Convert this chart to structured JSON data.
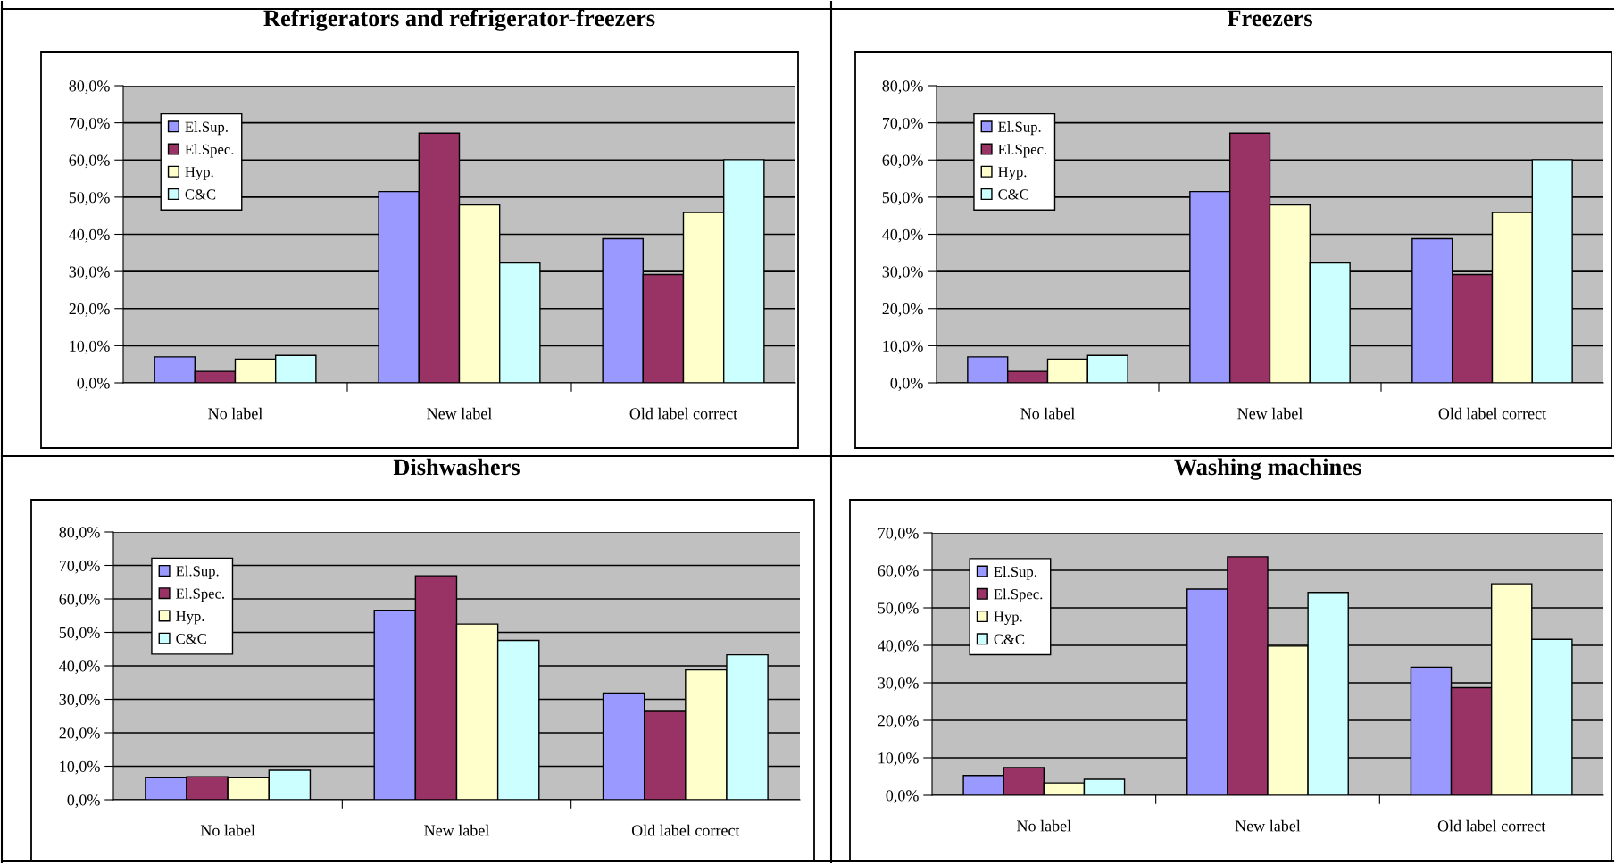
{
  "chart_data": [
    {
      "type": "bar",
      "title": "Refrigerators and refrigerator-freezers",
      "categories": [
        "No label",
        "New label",
        "Old label correct"
      ],
      "series": [
        {
          "name": "El.Sup.",
          "color": "#9999ff",
          "values": [
            7.0,
            51.5,
            38.8
          ]
        },
        {
          "name": "El.Spec.",
          "color": "#993366",
          "values": [
            3.1,
            67.2,
            29.2
          ]
        },
        {
          "name": "Hyp.",
          "color": "#ffffcc",
          "values": [
            6.4,
            47.9,
            45.9
          ]
        },
        {
          "name": "C&C",
          "color": "#ccffff",
          "values": [
            7.4,
            32.3,
            60.1
          ]
        }
      ],
      "ylim": [
        0,
        80
      ],
      "yticks": [
        {
          "value": 0,
          "label": "0,0%"
        },
        {
          "value": 10,
          "label": "10,0%"
        },
        {
          "value": 20,
          "label": "20,0%"
        },
        {
          "value": 30,
          "label": "30,0%"
        },
        {
          "value": 40,
          "label": "40,0%"
        },
        {
          "value": 50,
          "label": "50,0%"
        },
        {
          "value": 60,
          "label": "60,0%"
        },
        {
          "value": 70,
          "label": "70,0%"
        },
        {
          "value": 80,
          "label": "80,0%"
        }
      ],
      "grid": "y",
      "legend": "top left"
    },
    {
      "type": "bar",
      "title": "Freezers",
      "categories": [
        "No label",
        "New label",
        "Old label correct"
      ],
      "series": [
        {
          "name": "El.Sup.",
          "color": "#9999ff",
          "values": [
            7.0,
            51.5,
            38.8
          ]
        },
        {
          "name": "El.Spec.",
          "color": "#993366",
          "values": [
            3.1,
            67.2,
            29.2
          ]
        },
        {
          "name": "Hyp.",
          "color": "#ffffcc",
          "values": [
            6.4,
            47.9,
            45.9
          ]
        },
        {
          "name": "C&C",
          "color": "#ccffff",
          "values": [
            7.4,
            32.3,
            60.1
          ]
        }
      ],
      "ylim": [
        0,
        80
      ],
      "yticks": [
        {
          "value": 0,
          "label": "0,0%"
        },
        {
          "value": 10,
          "label": "10,0%"
        },
        {
          "value": 20,
          "label": "20,0%"
        },
        {
          "value": 30,
          "label": "30,0%"
        },
        {
          "value": 40,
          "label": "40,0%"
        },
        {
          "value": 50,
          "label": "50,0%"
        },
        {
          "value": 60,
          "label": "60,0%"
        },
        {
          "value": 70,
          "label": "70,0%"
        },
        {
          "value": 80,
          "label": "80,0%"
        }
      ],
      "grid": "y",
      "legend": "top left"
    },
    {
      "type": "bar",
      "title": "Dishwashers",
      "categories": [
        "No label",
        "New label",
        "Old label correct"
      ],
      "series": [
        {
          "name": "El.Sup.",
          "color": "#9999ff",
          "values": [
            6.6,
            56.6,
            31.9
          ]
        },
        {
          "name": "El.Spec.",
          "color": "#993366",
          "values": [
            6.9,
            66.9,
            26.4
          ]
        },
        {
          "name": "Hyp.",
          "color": "#ffffcc",
          "values": [
            6.6,
            52.5,
            38.8
          ]
        },
        {
          "name": "C&C",
          "color": "#ccffff",
          "values": [
            8.8,
            47.6,
            43.3
          ]
        }
      ],
      "ylim": [
        0,
        80
      ],
      "yticks": [
        {
          "value": 0,
          "label": "0,0%"
        },
        {
          "value": 10,
          "label": "10,0%"
        },
        {
          "value": 20,
          "label": "20,0%"
        },
        {
          "value": 30,
          "label": "30,0%"
        },
        {
          "value": 40,
          "label": "40,0%"
        },
        {
          "value": 50,
          "label": "50,0%"
        },
        {
          "value": 60,
          "label": "60,0%"
        },
        {
          "value": 70,
          "label": "70,0%"
        },
        {
          "value": 80,
          "label": "80,0%"
        }
      ],
      "grid": "y",
      "legend": "top left"
    },
    {
      "type": "bar",
      "title": "Washing machines",
      "categories": [
        "No label",
        "New label",
        "Old label correct"
      ],
      "series": [
        {
          "name": "El.Sup.",
          "color": "#9999ff",
          "values": [
            5.3,
            55.0,
            34.2
          ]
        },
        {
          "name": "El.Spec.",
          "color": "#993366",
          "values": [
            7.4,
            63.6,
            28.7
          ]
        },
        {
          "name": "Hyp.",
          "color": "#ffffcc",
          "values": [
            3.3,
            39.8,
            56.4
          ]
        },
        {
          "name": "C&C",
          "color": "#ccffff",
          "values": [
            4.3,
            54.1,
            41.6
          ]
        }
      ],
      "ylim": [
        0,
        70
      ],
      "yticks": [
        {
          "value": 0,
          "label": "0,0%"
        },
        {
          "value": 10,
          "label": "10,0%"
        },
        {
          "value": 20,
          "label": "20,0%"
        },
        {
          "value": 30,
          "label": "30,0%"
        },
        {
          "value": 40,
          "label": "40,0%"
        },
        {
          "value": 50,
          "label": "50,0%"
        },
        {
          "value": 60,
          "label": "60,0%"
        },
        {
          "value": 70,
          "label": "70,0%"
        }
      ],
      "grid": "y",
      "legend": "top left"
    }
  ]
}
